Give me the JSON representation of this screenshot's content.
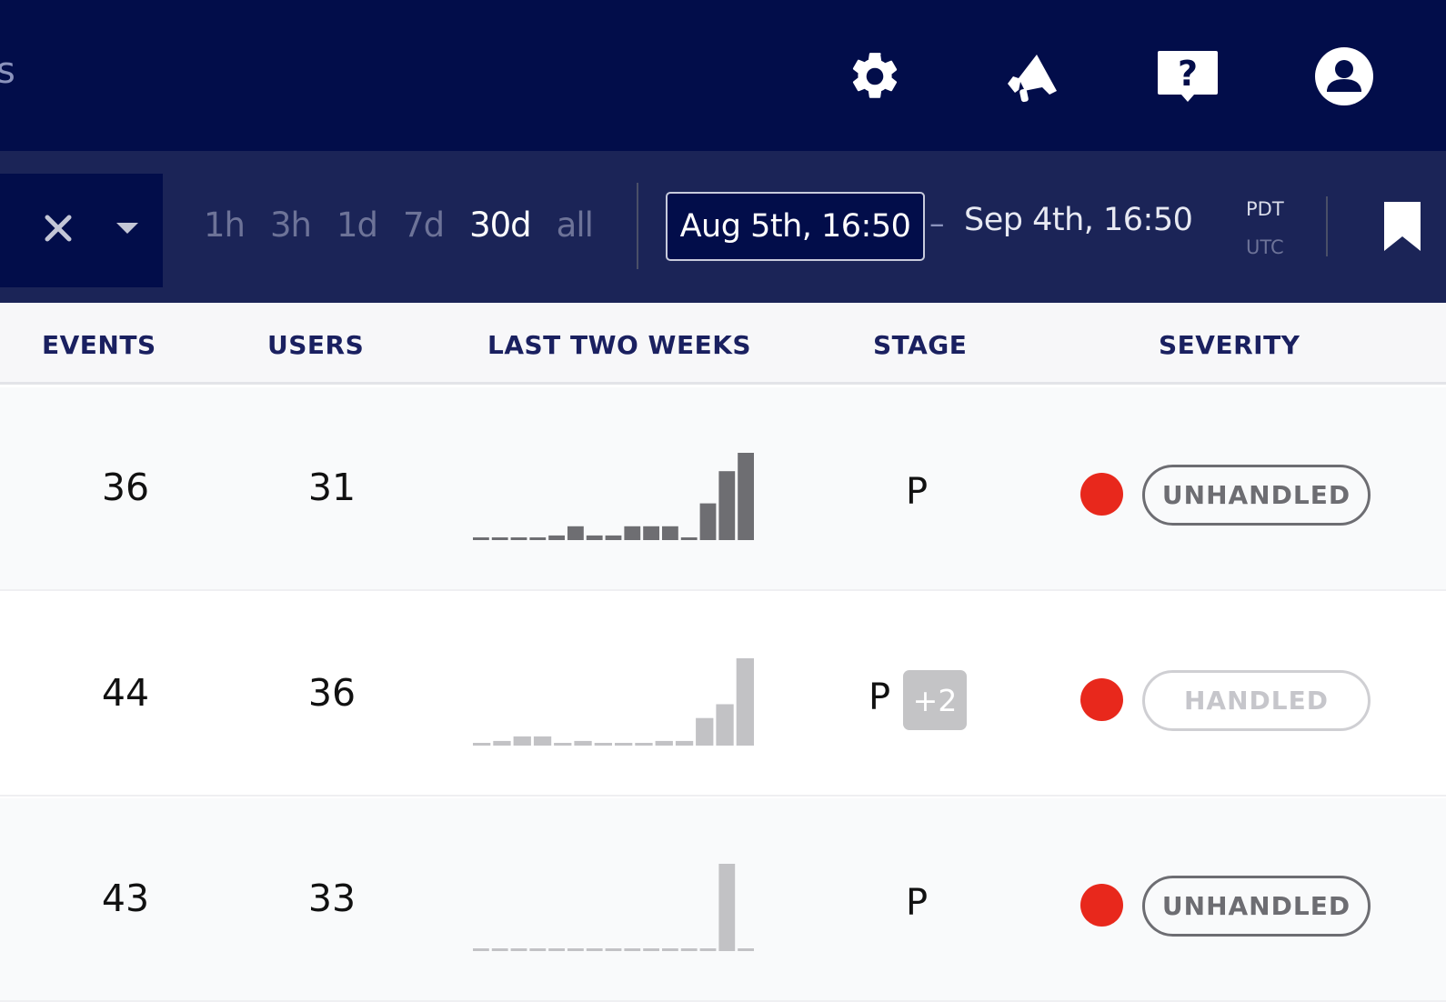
{
  "topbar": {
    "title_fragment": "s",
    "icons": [
      "gear-icon",
      "megaphone-icon",
      "help-icon",
      "user-icon"
    ]
  },
  "filters": {
    "ranges": [
      "1h",
      "3h",
      "1d",
      "7d",
      "30d",
      "all"
    ],
    "active_range": "30d",
    "date_start": "Aug 5th, 16:50",
    "date_separator": "–",
    "date_end": "Sep 4th, 16:50",
    "timezone_primary": "PDT",
    "timezone_secondary": "UTC"
  },
  "table": {
    "columns": [
      "EVENTS",
      "USERS",
      "LAST TWO WEEKS",
      "STAGE",
      "SEVERITY"
    ],
    "rows": [
      {
        "events": "36",
        "users": "31",
        "stage": "P",
        "stage_extra": "",
        "severity_status": "UNHANDLED",
        "sparkline": [
          0,
          0,
          0,
          0,
          1,
          3,
          1,
          1,
          3,
          3,
          3,
          0,
          8,
          15,
          19
        ],
        "spark_color": "#6e6e72"
      },
      {
        "events": "44",
        "users": "36",
        "stage": "P",
        "stage_extra": "+2",
        "severity_status": "HANDLED",
        "sparkline": [
          0,
          1,
          2,
          2,
          0,
          1,
          0,
          0,
          0,
          1,
          1,
          6,
          9,
          19
        ],
        "spark_color": "#c2c2c5"
      },
      {
        "events": "43",
        "users": "33",
        "stage": "P",
        "stage_extra": "",
        "severity_status": "UNHANDLED",
        "sparkline": [
          0,
          0,
          0,
          0,
          0,
          0,
          0,
          0,
          0,
          0,
          0,
          0,
          0,
          19,
          0
        ],
        "spark_color": "#c2c2c5"
      }
    ]
  },
  "colors": {
    "header_bg": "#020d4a",
    "filterbar_bg": "#1b2457",
    "severity_red": "#e8281c"
  }
}
